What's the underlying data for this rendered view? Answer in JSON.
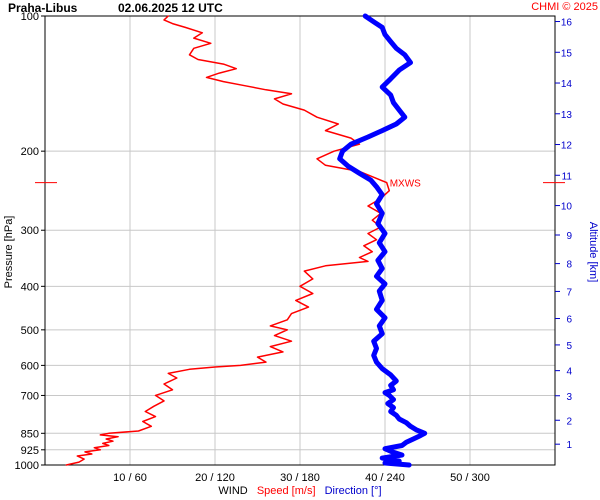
{
  "header": {
    "station": "Praha-Libus",
    "datetime": "02.06.2025 12 UTC",
    "credit": "CHMI © 2025"
  },
  "axes": {
    "pressure_label": "Pressure [hPa]",
    "altitude_label": "Altitude [km]",
    "wind_label": "WIND",
    "speed_label": "Speed [m/s]",
    "direction_label": "Direction [°]"
  },
  "colors": {
    "speed": "#ff0000",
    "direction": "#0000ff",
    "grid": "#c8c8c8",
    "axis_right": "#0000cc"
  },
  "chart_data": {
    "type": "line",
    "x_scale": "linear",
    "y_scale": "log",
    "y_reversed": true,
    "y_unit": "hPa",
    "xlim_speed": [
      0,
      60
    ],
    "xlim_direction": [
      0,
      360
    ],
    "ylim_pressure": [
      1000,
      100
    ],
    "x_ticks": [
      "10 / 60",
      "20 / 120",
      "30 / 180",
      "40 / 240",
      "50 / 300"
    ],
    "x_tick_values_speed": [
      10,
      20,
      30,
      40,
      50
    ],
    "y_ticks": [
      100,
      200,
      300,
      400,
      500,
      600,
      700,
      850,
      925,
      1000
    ],
    "altitude_ticks_km": [
      1,
      2,
      3,
      4,
      5,
      6,
      7,
      8,
      9,
      10,
      11,
      12,
      13,
      14,
      15,
      16
    ],
    "grid": true,
    "annotations": [
      {
        "text": "MXWS",
        "pressure": 235,
        "speed": 40.2
      }
    ],
    "series": [
      {
        "name": "Speed [m/s]",
        "axis": "speed",
        "points": [
          [
            1000,
            2.5
          ],
          [
            985,
            4.0
          ],
          [
            970,
            4.6
          ],
          [
            955,
            3.8
          ],
          [
            945,
            5.5
          ],
          [
            935,
            4.7
          ],
          [
            925,
            6.5
          ],
          [
            915,
            5.8
          ],
          [
            905,
            7.5
          ],
          [
            895,
            6.8
          ],
          [
            885,
            8.0
          ],
          [
            875,
            7.2
          ],
          [
            865,
            8.6
          ],
          [
            857,
            6.5
          ],
          [
            850,
            7.5
          ],
          [
            840,
            11.0
          ],
          [
            820,
            12.5
          ],
          [
            800,
            11.5
          ],
          [
            780,
            13.0
          ],
          [
            760,
            11.8
          ],
          [
            740,
            12.8
          ],
          [
            720,
            14.0
          ],
          [
            700,
            13.0
          ],
          [
            680,
            15.0
          ],
          [
            660,
            14.0
          ],
          [
            640,
            15.5
          ],
          [
            625,
            14.5
          ],
          [
            612,
            17.0
          ],
          [
            605,
            20.0
          ],
          [
            600,
            23.0
          ],
          [
            590,
            26.0
          ],
          [
            575,
            25.0
          ],
          [
            560,
            28.0
          ],
          [
            545,
            26.5
          ],
          [
            530,
            29.0
          ],
          [
            515,
            27.0
          ],
          [
            500,
            28.5
          ],
          [
            490,
            26.5
          ],
          [
            475,
            28.5
          ],
          [
            460,
            29.0
          ],
          [
            445,
            31.0
          ],
          [
            430,
            29.5
          ],
          [
            415,
            31.5
          ],
          [
            400,
            30.0
          ],
          [
            385,
            31.5
          ],
          [
            370,
            30.5
          ],
          [
            360,
            33.0
          ],
          [
            352,
            38.0
          ],
          [
            345,
            37.0
          ],
          [
            335,
            38.5
          ],
          [
            325,
            37.5
          ],
          [
            315,
            39.0
          ],
          [
            305,
            38.0
          ],
          [
            295,
            39.5
          ],
          [
            285,
            38.5
          ],
          [
            275,
            39.5
          ],
          [
            265,
            38.0
          ],
          [
            255,
            39.5
          ],
          [
            245,
            40.5
          ],
          [
            235,
            40.2
          ],
          [
            228,
            38.5
          ],
          [
            222,
            37.0
          ],
          [
            215,
            33.0
          ],
          [
            208,
            32.0
          ],
          [
            200,
            34.0
          ],
          [
            193,
            37.0
          ],
          [
            187,
            36.0
          ],
          [
            180,
            33.0
          ],
          [
            174,
            34.5
          ],
          [
            168,
            32.0
          ],
          [
            162,
            30.5
          ],
          [
            157,
            28.0
          ],
          [
            153,
            27.0
          ],
          [
            149,
            29.0
          ],
          [
            146,
            26.0
          ],
          [
            143,
            23.5
          ],
          [
            140,
            21.0
          ],
          [
            137,
            19.0
          ],
          [
            134,
            20.5
          ],
          [
            131,
            22.5
          ],
          [
            128,
            21.0
          ],
          [
            125,
            18.0
          ],
          [
            122,
            17.0
          ],
          [
            118,
            17.5
          ],
          [
            115,
            19.5
          ],
          [
            112,
            17.5
          ],
          [
            109,
            18.5
          ],
          [
            106,
            16.5
          ],
          [
            104,
            15.0
          ],
          [
            102,
            14.0
          ],
          [
            100,
            14.5
          ]
        ]
      },
      {
        "name": "Direction [°]",
        "axis": "direction",
        "points": [
          [
            1000,
            257
          ],
          [
            990,
            240
          ],
          [
            980,
            250
          ],
          [
            965,
            238
          ],
          [
            950,
            252
          ],
          [
            935,
            245
          ],
          [
            920,
            240
          ],
          [
            905,
            252
          ],
          [
            890,
            255
          ],
          [
            875,
            260
          ],
          [
            860,
            265
          ],
          [
            850,
            268
          ],
          [
            835,
            262
          ],
          [
            820,
            258
          ],
          [
            805,
            255
          ],
          [
            790,
            250
          ],
          [
            775,
            248
          ],
          [
            760,
            244
          ],
          [
            745,
            246
          ],
          [
            730,
            242
          ],
          [
            715,
            246
          ],
          [
            700,
            243
          ],
          [
            690,
            240
          ],
          [
            680,
            246
          ],
          [
            665,
            244
          ],
          [
            650,
            248
          ],
          [
            630,
            244
          ],
          [
            610,
            238
          ],
          [
            590,
            234
          ],
          [
            570,
            232
          ],
          [
            550,
            234
          ],
          [
            530,
            232
          ],
          [
            510,
            238
          ],
          [
            490,
            236
          ],
          [
            470,
            240
          ],
          [
            450,
            234
          ],
          [
            430,
            238
          ],
          [
            410,
            236
          ],
          [
            395,
            240
          ],
          [
            380,
            234
          ],
          [
            365,
            238
          ],
          [
            350,
            235
          ],
          [
            335,
            240
          ],
          [
            320,
            236
          ],
          [
            305,
            240
          ],
          [
            290,
            235
          ],
          [
            275,
            238
          ],
          [
            262,
            234
          ],
          [
            250,
            238
          ],
          [
            240,
            234
          ],
          [
            232,
            230
          ],
          [
            224,
            222
          ],
          [
            216,
            214
          ],
          [
            208,
            208
          ],
          [
            200,
            210
          ],
          [
            193,
            216
          ],
          [
            186,
            228
          ],
          [
            180,
            238
          ],
          [
            174,
            248
          ],
          [
            168,
            254
          ],
          [
            162,
            250
          ],
          [
            156,
            246
          ],
          [
            150,
            244
          ],
          [
            144,
            238
          ],
          [
            138,
            244
          ],
          [
            132,
            250
          ],
          [
            127,
            258
          ],
          [
            122,
            254
          ],
          [
            118,
            248
          ],
          [
            114,
            244
          ],
          [
            110,
            240
          ],
          [
            106,
            238
          ],
          [
            103,
            232
          ],
          [
            101,
            228
          ],
          [
            100,
            226
          ]
        ]
      }
    ]
  }
}
